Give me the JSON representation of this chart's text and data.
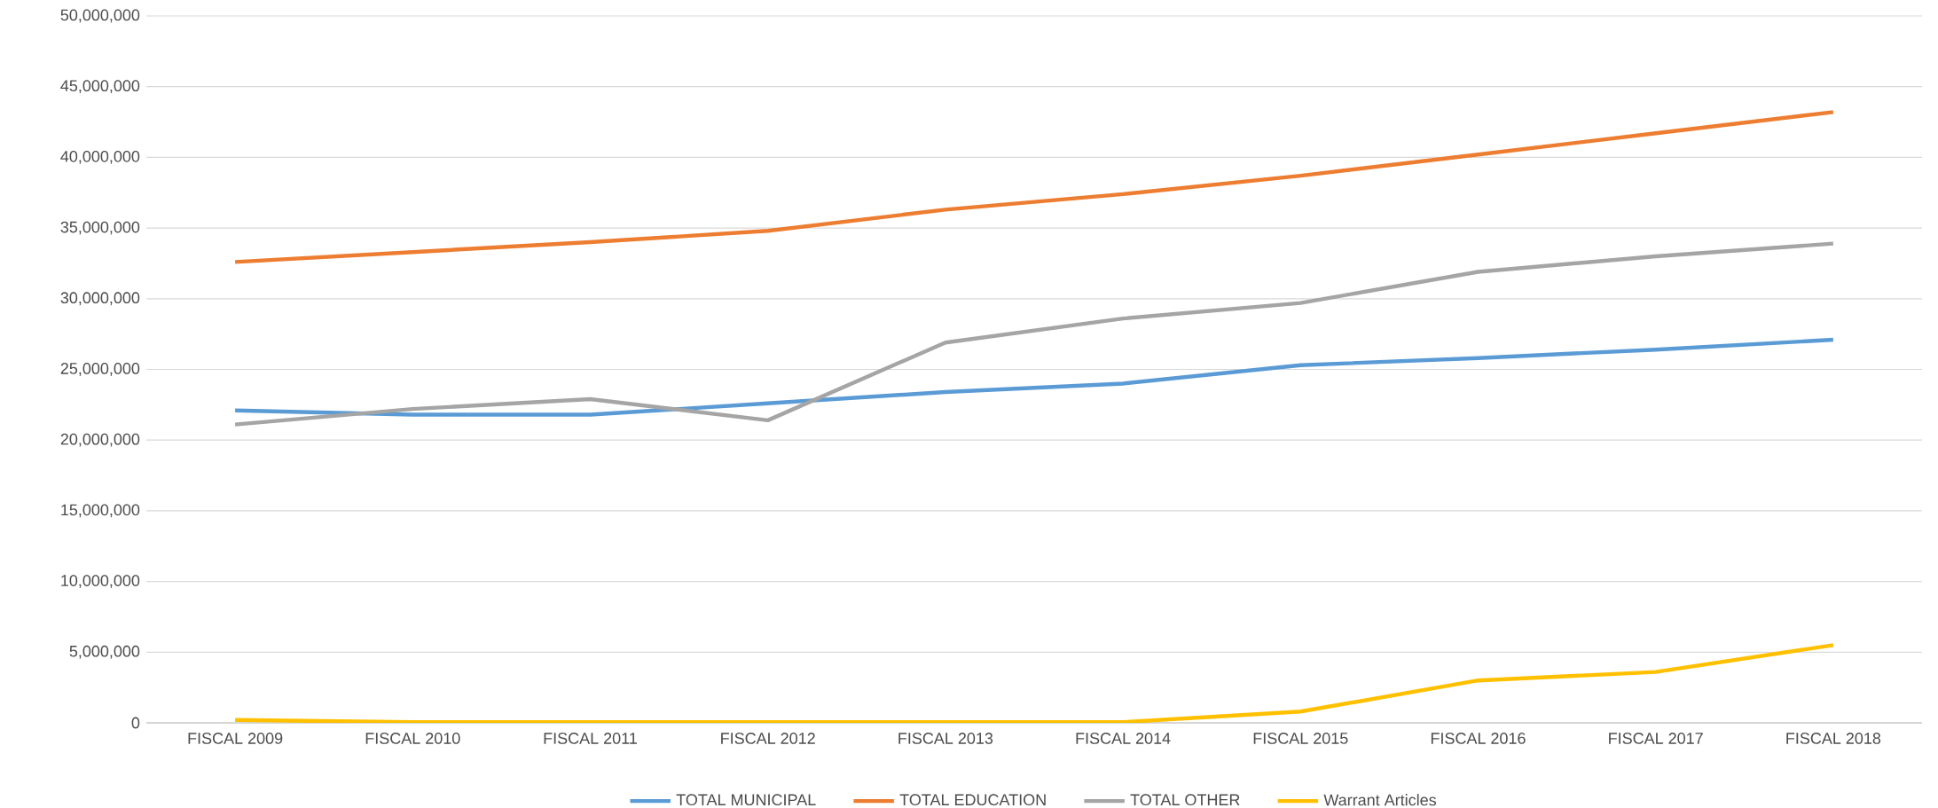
{
  "chart_data": {
    "type": "line",
    "categories": [
      "FISCAL 2009",
      "FISCAL 2010",
      "FISCAL 2011",
      "FISCAL 2012",
      "FISCAL 2013",
      "FISCAL 2014",
      "FISCAL 2015",
      "FISCAL 2016",
      "FISCAL 2017",
      "FISCAL 2018"
    ],
    "series": [
      {
        "name": "TOTAL MUNICIPAL",
        "color": "#5b9bd5",
        "values": [
          22100000,
          21800000,
          21800000,
          22600000,
          23400000,
          24000000,
          25300000,
          25800000,
          26400000,
          27100000
        ]
      },
      {
        "name": "TOTAL EDUCATION",
        "color": "#ed7d31",
        "values": [
          32600000,
          33300000,
          34000000,
          34800000,
          36300000,
          37400000,
          38700000,
          40200000,
          41700000,
          43200000
        ]
      },
      {
        "name": "TOTAL OTHER",
        "color": "#a5a5a5",
        "values": [
          21100000,
          22200000,
          22900000,
          21400000,
          26900000,
          28600000,
          29700000,
          31900000,
          33000000,
          33900000
        ]
      },
      {
        "name": "Warrant Articles",
        "color": "#ffc000",
        "values": [
          200000,
          50000,
          50000,
          50000,
          50000,
          50000,
          800000,
          3000000,
          3600000,
          5500000
        ]
      }
    ],
    "ylim": [
      0,
      50000000
    ],
    "yticks": [
      0,
      {
        "value": 5000000,
        "label": "5,000,000"
      },
      {
        "value": 10000000,
        "label": "10,000,000"
      },
      {
        "value": 15000000,
        "label": "15,000,000"
      },
      {
        "value": 20000000,
        "label": "20,000,000"
      },
      {
        "value": 25000000,
        "label": "25,000,000"
      },
      {
        "value": 30000000,
        "label": "30,000,000"
      },
      {
        "value": 35000000,
        "label": "35,000,000"
      },
      {
        "value": 40000000,
        "label": "40,000,000"
      },
      {
        "value": 45000000,
        "label": "45,000,000"
      },
      {
        "value": 50000000,
        "label": "50,000,000"
      }
    ],
    "grid": "y",
    "legend": "bottom",
    "marker": "none",
    "line_style": "solid"
  }
}
